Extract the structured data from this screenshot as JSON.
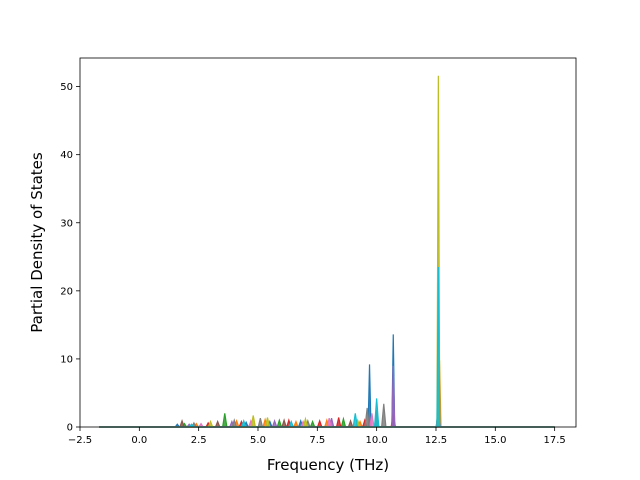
{
  "chart_data": {
    "type": "area",
    "title": "",
    "xlabel": "Frequency (THz)",
    "ylabel": "Partial Density of States",
    "xlim": [
      -2.5,
      18.4
    ],
    "ylim": [
      0,
      54.2
    ],
    "xticks": [
      -2.5,
      0.0,
      2.5,
      5.0,
      7.5,
      10.0,
      12.5,
      15.0,
      17.5
    ],
    "xtick_labels": [
      "−2.5",
      "0.0",
      "2.5",
      "5.0",
      "7.5",
      "10.0",
      "12.5",
      "15.0",
      "17.5"
    ],
    "yticks": [
      0,
      10,
      20,
      30,
      40,
      50
    ],
    "ytick_labels": [
      "0",
      "10",
      "20",
      "30",
      "40",
      "50"
    ],
    "grid": false,
    "legend": "none",
    "x_data_range": [
      -1.7,
      17.5
    ],
    "colors": [
      "#1f77b4",
      "#ff7f0e",
      "#2ca02c",
      "#d62728",
      "#9467bd",
      "#8c564b",
      "#e377c2",
      "#7f7f7f",
      "#bcbd22",
      "#17becf"
    ],
    "series": [
      {
        "color": "#1f77b4",
        "peaks": [
          [
            1.6,
            0.4
          ],
          [
            4.5,
            0.7
          ],
          [
            5.5,
            0.8
          ],
          [
            6.8,
            0.9
          ],
          [
            9.7,
            9.2
          ],
          [
            10.7,
            13.6
          ],
          [
            12.6,
            3.0
          ]
        ]
      },
      {
        "color": "#ff7f0e",
        "peaks": [
          [
            2.4,
            0.5
          ],
          [
            4.1,
            0.9
          ],
          [
            5.3,
            1.1
          ],
          [
            6.6,
            0.8
          ],
          [
            7.9,
            1.0
          ],
          [
            9.3,
            0.8
          ],
          [
            12.65,
            9.8
          ]
        ]
      },
      {
        "color": "#2ca02c",
        "peaks": [
          [
            1.9,
            0.5
          ],
          [
            3.6,
            2.0
          ],
          [
            5.9,
            1.0
          ],
          [
            7.3,
            0.8
          ],
          [
            8.6,
            1.2
          ],
          [
            12.6,
            7.5
          ]
        ]
      },
      {
        "color": "#d62728",
        "peaks": [
          [
            2.9,
            0.6
          ],
          [
            4.3,
            0.8
          ],
          [
            6.3,
            1.0
          ],
          [
            7.6,
            0.9
          ],
          [
            8.4,
            1.4
          ],
          [
            9.5,
            1.0
          ],
          [
            10.7,
            1.8
          ]
        ]
      },
      {
        "color": "#9467bd",
        "peaks": [
          [
            2.1,
            0.4
          ],
          [
            3.9,
            0.8
          ],
          [
            5.7,
            0.9
          ],
          [
            8.1,
            1.3
          ],
          [
            10.7,
            9.0
          ],
          [
            12.6,
            2.5
          ]
        ]
      },
      {
        "color": "#8c564b",
        "peaks": [
          [
            1.8,
            0.9
          ],
          [
            3.3,
            0.8
          ],
          [
            6.1,
            1.0
          ],
          [
            8.9,
            0.9
          ],
          [
            10.0,
            2.5
          ]
        ]
      },
      {
        "color": "#e377c2",
        "peaks": [
          [
            2.6,
            0.5
          ],
          [
            4.7,
            0.9
          ],
          [
            6.9,
            0.8
          ],
          [
            8.0,
            1.3
          ],
          [
            9.8,
            2.0
          ]
        ]
      },
      {
        "color": "#7f7f7f",
        "peaks": [
          [
            2.3,
            0.6
          ],
          [
            4.0,
            1.0
          ],
          [
            5.1,
            1.3
          ],
          [
            7.1,
            0.9
          ],
          [
            9.6,
            2.8
          ],
          [
            10.3,
            3.4
          ]
        ]
      },
      {
        "color": "#bcbd22",
        "peaks": [
          [
            3.0,
            0.8
          ],
          [
            4.8,
            1.7
          ],
          [
            5.4,
            1.4
          ],
          [
            7.0,
            1.2
          ],
          [
            9.2,
            1.0
          ],
          [
            12.6,
            51.6
          ]
        ]
      },
      {
        "color": "#17becf",
        "peaks": [
          [
            2.2,
            0.4
          ],
          [
            4.4,
            0.9
          ],
          [
            6.4,
            0.8
          ],
          [
            9.1,
            2.0
          ],
          [
            10.0,
            4.2
          ],
          [
            12.6,
            23.5
          ]
        ]
      }
    ]
  }
}
